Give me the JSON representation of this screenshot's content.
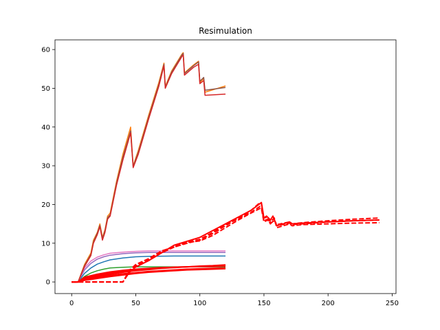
{
  "chart_data": {
    "type": "line",
    "title": "Resimulation",
    "xlabel": "",
    "ylabel": "",
    "xlim": [
      -13,
      253
    ],
    "ylim": [
      -3.0,
      62.5
    ],
    "xticks": [
      0,
      50,
      100,
      150,
      200,
      250
    ],
    "yticks": [
      0,
      10,
      20,
      30,
      40,
      50,
      60
    ],
    "grid": false,
    "legend": "none",
    "series": [
      {
        "color": "#1f77b4",
        "style": "solid",
        "x": [
          0,
          5,
          10,
          15,
          20,
          25,
          30,
          40,
          50,
          60,
          80,
          100,
          120
        ],
        "y": [
          0,
          0,
          2.2,
          3.6,
          4.6,
          5.2,
          5.7,
          6.2,
          6.5,
          6.6,
          6.7,
          6.7,
          6.7
        ]
      },
      {
        "color": "#2ca02c",
        "style": "solid",
        "x": [
          0,
          5,
          10,
          15,
          20,
          25,
          30,
          40,
          50,
          60,
          80,
          100,
          120
        ],
        "y": [
          0,
          0,
          1.4,
          2.3,
          2.9,
          3.3,
          3.6,
          3.8,
          3.9,
          3.9,
          3.9,
          3.9,
          3.9
        ]
      },
      {
        "color": "#9467bd",
        "style": "solid",
        "x": [
          0,
          5,
          10,
          15,
          20,
          25,
          30,
          40,
          50,
          60,
          80,
          100,
          120
        ],
        "y": [
          0,
          0,
          3.1,
          4.8,
          5.9,
          6.5,
          6.9,
          7.3,
          7.5,
          7.6,
          7.6,
          7.6,
          7.6
        ]
      },
      {
        "color": "#e377c2",
        "style": "solid",
        "x": [
          0,
          5,
          10,
          15,
          20,
          25,
          30,
          40,
          50,
          60,
          80,
          100,
          120
        ],
        "y": [
          0,
          0,
          3.6,
          5.4,
          6.4,
          7.0,
          7.4,
          7.7,
          7.9,
          8.0,
          8.0,
          8.0,
          8.0
        ]
      },
      {
        "color": "#ff7f0e",
        "style": "solid",
        "x": [
          0,
          5,
          10,
          15,
          17,
          20,
          22,
          24,
          26,
          28,
          30,
          35,
          40,
          46,
          48,
          52,
          60,
          68,
          72,
          73,
          78,
          86,
          87,
          88,
          95,
          99,
          100,
          103,
          104,
          120
        ],
        "y": [
          0,
          0,
          4.5,
          7.5,
          10.8,
          12.8,
          15.0,
          11.5,
          13.5,
          17.0,
          17.8,
          26.0,
          33.0,
          40.0,
          30.0,
          34.0,
          43.0,
          51.5,
          56.5,
          50.5,
          54.5,
          58.8,
          59.2,
          54.0,
          56.0,
          57.0,
          51.5,
          52.5,
          49.0,
          50.6
        ]
      },
      {
        "color": "#8c564b",
        "style": "solid",
        "x": [
          0,
          5,
          10,
          15,
          17,
          20,
          22,
          24,
          26,
          28,
          30,
          35,
          40,
          46,
          48,
          52,
          60,
          68,
          72,
          73,
          78,
          86,
          87,
          88,
          95,
          99,
          100,
          103,
          104,
          120
        ],
        "y": [
          0,
          0,
          4.2,
          7.1,
          10.3,
          12.6,
          14.6,
          11.2,
          13.2,
          16.6,
          17.3,
          25.5,
          32.2,
          39.0,
          29.8,
          33.5,
          42.5,
          51.0,
          56.2,
          50.2,
          54.2,
          58.6,
          59.0,
          53.8,
          55.8,
          56.8,
          51.8,
          52.8,
          49.5,
          50.2
        ]
      },
      {
        "color": "#d62728",
        "style": "solid",
        "x": [
          0,
          5,
          10,
          15,
          17,
          20,
          22,
          24,
          26,
          28,
          30,
          35,
          40,
          46,
          48,
          52,
          60,
          68,
          72,
          73,
          78,
          86,
          87,
          88,
          95,
          99,
          100,
          103,
          104,
          120
        ],
        "y": [
          0,
          0,
          4.0,
          6.8,
          10.0,
          12.2,
          14.3,
          10.8,
          12.8,
          16.2,
          17.0,
          25.0,
          31.5,
          38.5,
          29.5,
          33.0,
          42.0,
          50.5,
          55.8,
          50.0,
          53.8,
          58.2,
          58.6,
          53.4,
          55.4,
          56.2,
          51.2,
          52.0,
          48.2,
          48.5
        ]
      },
      {
        "color": "#ff0000",
        "style": "solid",
        "x": [
          0,
          5,
          10,
          20,
          30,
          40,
          50,
          60,
          70,
          80,
          90,
          100,
          110,
          120
        ],
        "y": [
          0,
          0,
          0.8,
          1.5,
          2.0,
          2.5,
          2.9,
          3.2,
          3.5,
          3.7,
          3.9,
          4.1,
          4.2,
          4.4
        ]
      },
      {
        "color": "#ff0000",
        "style": "solid",
        "x": [
          0,
          5,
          10,
          20,
          30,
          40,
          50,
          60,
          70,
          80,
          90,
          100,
          110,
          120
        ],
        "y": [
          0,
          0,
          1.0,
          1.8,
          2.3,
          2.8,
          3.1,
          3.4,
          3.6,
          3.8,
          3.9,
          4.0,
          4.0,
          4.1
        ]
      },
      {
        "color": "#ff0000",
        "style": "solid",
        "x": [
          0,
          5,
          10,
          20,
          30,
          40,
          50,
          60,
          70,
          80,
          90,
          100,
          110,
          120
        ],
        "y": [
          0,
          0,
          0.6,
          1.2,
          1.7,
          2.1,
          2.4,
          2.7,
          2.9,
          3.1,
          3.3,
          3.4,
          3.5,
          3.6
        ]
      },
      {
        "color": "#ff0000",
        "style": "solid",
        "x": [
          0,
          5,
          10,
          20,
          30,
          40,
          50,
          60,
          70,
          80,
          90,
          100,
          110,
          120
        ],
        "y": [
          0,
          0,
          1.2,
          2.0,
          2.6,
          3.0,
          3.3,
          3.5,
          3.7,
          3.8,
          3.9,
          4.0,
          4.1,
          4.2
        ]
      },
      {
        "color": "#ff0000",
        "style": "solid",
        "x": [
          0,
          5,
          10,
          20,
          30,
          40,
          50,
          60,
          70,
          80,
          90,
          100,
          110,
          120
        ],
        "y": [
          0,
          0,
          0.4,
          0.9,
          1.4,
          1.8,
          2.2,
          2.5,
          2.7,
          2.9,
          3.1,
          3.2,
          3.3,
          3.4
        ]
      },
      {
        "color": "#ff0000",
        "style": "solid",
        "x": [
          48,
          60,
          80,
          100,
          120,
          140,
          148,
          150,
          152,
          155,
          157,
          160,
          170,
          172,
          180,
          200,
          220,
          240
        ],
        "y": [
          3.5,
          5.5,
          9.5,
          11.5,
          15.0,
          18.5,
          20.5,
          16.5,
          17.0,
          16.0,
          17.0,
          14.5,
          15.5,
          15.0,
          15.2,
          15.5,
          15.8,
          16.0
        ]
      },
      {
        "color": "#ff0000",
        "style": "dashed",
        "x": [
          0,
          40,
          45,
          50,
          60,
          70,
          80,
          90,
          100,
          110,
          120,
          130,
          140,
          147,
          148,
          150,
          153,
          155,
          158,
          160,
          170,
          172,
          180,
          200,
          220,
          240
        ],
        "y": [
          0,
          0,
          2.5,
          4.0,
          5.5,
          7.5,
          9.0,
          10.0,
          10.8,
          12.5,
          14.5,
          16.5,
          18.5,
          20.5,
          20.3,
          16.5,
          16.8,
          15.5,
          16.5,
          14.0,
          15.0,
          14.5,
          14.8,
          15.0,
          15.2,
          15.3
        ]
      },
      {
        "color": "#ff0000",
        "style": "dashed",
        "x": [
          0,
          40,
          45,
          50,
          60,
          70,
          80,
          90,
          100,
          110,
          120,
          130,
          140,
          147,
          148,
          150,
          153,
          155,
          158,
          160,
          170,
          172,
          180,
          200,
          220,
          240
        ],
        "y": [
          0,
          0,
          2.8,
          4.2,
          5.8,
          7.8,
          9.3,
          10.3,
          11.0,
          12.8,
          14.8,
          16.3,
          18.0,
          19.5,
          19.4,
          15.8,
          16.2,
          15.0,
          16.0,
          14.8,
          15.5,
          15.0,
          15.3,
          15.8,
          16.2,
          16.5
        ]
      },
      {
        "color": "#ff0000",
        "style": "dashed",
        "x": [
          0,
          40,
          45,
          50,
          60,
          70,
          80,
          90,
          100,
          110,
          120,
          130,
          140,
          147,
          148,
          150,
          153,
          155,
          158,
          160,
          170,
          172,
          180,
          200,
          220,
          240
        ],
        "y": [
          0,
          0,
          3.0,
          4.5,
          6.0,
          8.0,
          9.0,
          10.2,
          10.6,
          12.0,
          14.0,
          16.0,
          17.8,
          19.0,
          19.0,
          15.5,
          16.0,
          15.2,
          15.8,
          14.5,
          15.2,
          14.8,
          15.0,
          15.5,
          15.8,
          16.0
        ]
      }
    ]
  }
}
